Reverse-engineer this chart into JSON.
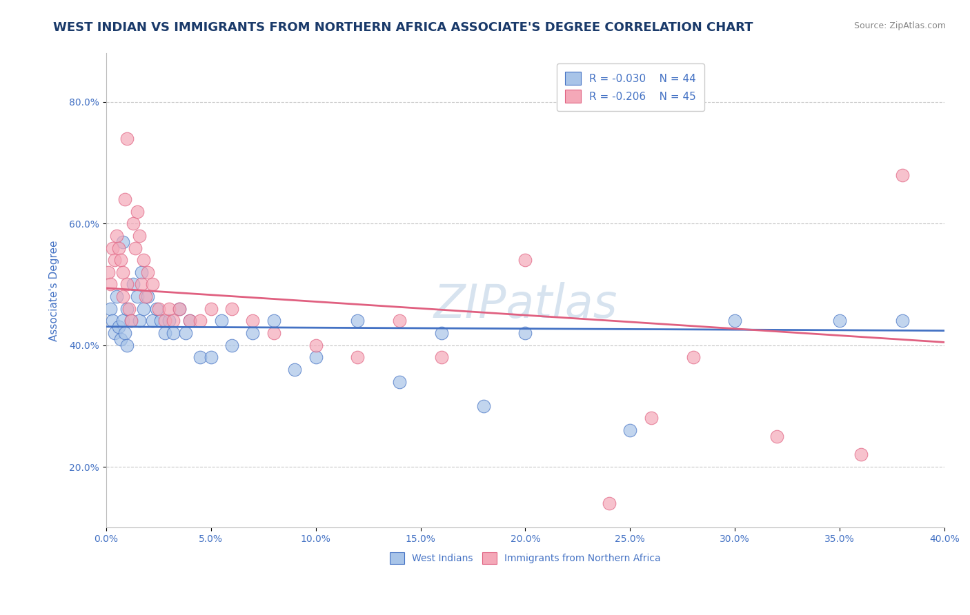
{
  "title": "WEST INDIAN VS IMMIGRANTS FROM NORTHERN AFRICA ASSOCIATE'S DEGREE CORRELATION CHART",
  "source": "Source: ZipAtlas.com",
  "ylabel": "Associate's Degree",
  "xlim": [
    0.0,
    0.4
  ],
  "ylim": [
    0.1,
    0.88
  ],
  "xticks": [
    0.0,
    0.05,
    0.1,
    0.15,
    0.2,
    0.25,
    0.3,
    0.35,
    0.4
  ],
  "yticks": [
    0.2,
    0.4,
    0.6,
    0.8
  ],
  "series1_name": "West Indians",
  "series1_color": "#a8c4e8",
  "series1_R": -0.03,
  "series1_N": 44,
  "series2_name": "Immigrants from Northern Africa",
  "series2_color": "#f4a8b8",
  "series2_R": -0.206,
  "series2_N": 45,
  "legend_R1": "R = -0.030",
  "legend_N1": "N = 44",
  "legend_R2": "R = -0.206",
  "legend_N2": "N = 45",
  "trend1_color": "#4472c4",
  "trend2_color": "#e06080",
  "watermark": "ZIPatlas",
  "background_color": "#ffffff",
  "grid_color": "#c8c8c8",
  "axis_color": "#bbbbbb",
  "title_color": "#1a3a6a",
  "label_color": "#4472c4",
  "title_fontsize": 13,
  "label_fontsize": 11,
  "tick_fontsize": 10,
  "blue_x": [
    0.002,
    0.003,
    0.004,
    0.005,
    0.006,
    0.007,
    0.008,
    0.009,
    0.01,
    0.01,
    0.012,
    0.013,
    0.015,
    0.016,
    0.017,
    0.018,
    0.02,
    0.022,
    0.024,
    0.026,
    0.028,
    0.03,
    0.032,
    0.035,
    0.038,
    0.04,
    0.045,
    0.05,
    0.055,
    0.06,
    0.07,
    0.08,
    0.09,
    0.1,
    0.12,
    0.14,
    0.16,
    0.18,
    0.2,
    0.25,
    0.3,
    0.35,
    0.38,
    0.008
  ],
  "blue_y": [
    0.46,
    0.44,
    0.42,
    0.48,
    0.43,
    0.41,
    0.44,
    0.42,
    0.46,
    0.4,
    0.44,
    0.5,
    0.48,
    0.44,
    0.52,
    0.46,
    0.48,
    0.44,
    0.46,
    0.44,
    0.42,
    0.44,
    0.42,
    0.46,
    0.42,
    0.44,
    0.38,
    0.38,
    0.44,
    0.4,
    0.42,
    0.44,
    0.36,
    0.38,
    0.44,
    0.34,
    0.42,
    0.3,
    0.42,
    0.26,
    0.44,
    0.44,
    0.44,
    0.57
  ],
  "pink_x": [
    0.001,
    0.002,
    0.003,
    0.004,
    0.005,
    0.006,
    0.007,
    0.008,
    0.008,
    0.009,
    0.01,
    0.011,
    0.012,
    0.013,
    0.014,
    0.015,
    0.016,
    0.017,
    0.018,
    0.019,
    0.02,
    0.022,
    0.025,
    0.028,
    0.03,
    0.032,
    0.035,
    0.04,
    0.045,
    0.05,
    0.06,
    0.07,
    0.08,
    0.1,
    0.12,
    0.14,
    0.16,
    0.2,
    0.24,
    0.26,
    0.28,
    0.32,
    0.36,
    0.38,
    0.01
  ],
  "pink_y": [
    0.52,
    0.5,
    0.56,
    0.54,
    0.58,
    0.56,
    0.54,
    0.52,
    0.48,
    0.64,
    0.5,
    0.46,
    0.44,
    0.6,
    0.56,
    0.62,
    0.58,
    0.5,
    0.54,
    0.48,
    0.52,
    0.5,
    0.46,
    0.44,
    0.46,
    0.44,
    0.46,
    0.44,
    0.44,
    0.46,
    0.46,
    0.44,
    0.42,
    0.4,
    0.38,
    0.44,
    0.38,
    0.54,
    0.14,
    0.28,
    0.38,
    0.25,
    0.22,
    0.68,
    0.74
  ]
}
